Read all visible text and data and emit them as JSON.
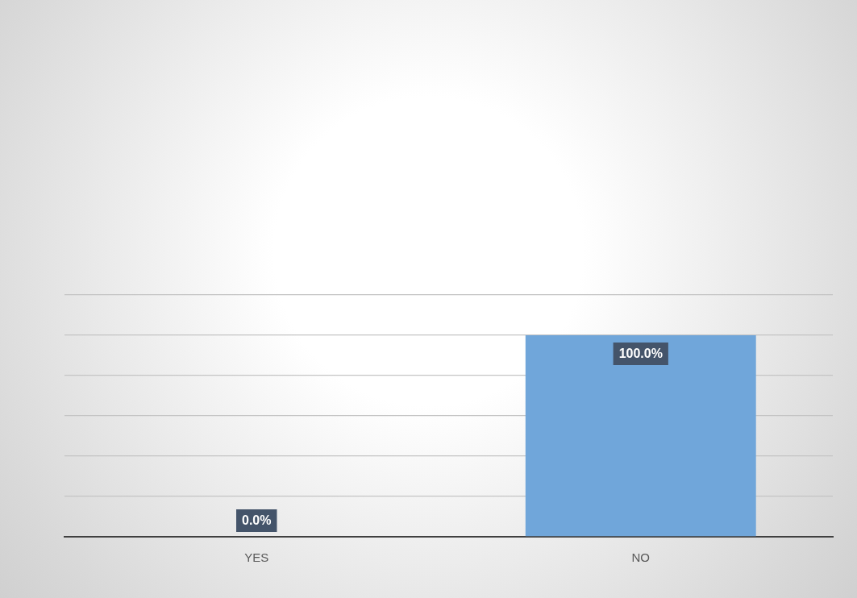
{
  "chart_data": {
    "type": "bar",
    "categories": [
      "YES",
      "NO"
    ],
    "values": [
      0,
      100
    ],
    "value_labels": [
      "0.0%",
      "100.0%"
    ],
    "color": "#70a6da",
    "ylim": [
      0,
      120
    ],
    "yticks": [
      {
        "value": 0,
        "label": null
      },
      {
        "value": 20,
        "label": null
      },
      {
        "value": 40,
        "label": null
      },
      {
        "value": 60,
        "label": null
      },
      {
        "value": 80,
        "label": null
      },
      {
        "value": 100,
        "label": null
      },
      {
        "value": 120,
        "label": null
      }
    ],
    "grid": "y",
    "tick_labels": "x",
    "legend": false
  }
}
